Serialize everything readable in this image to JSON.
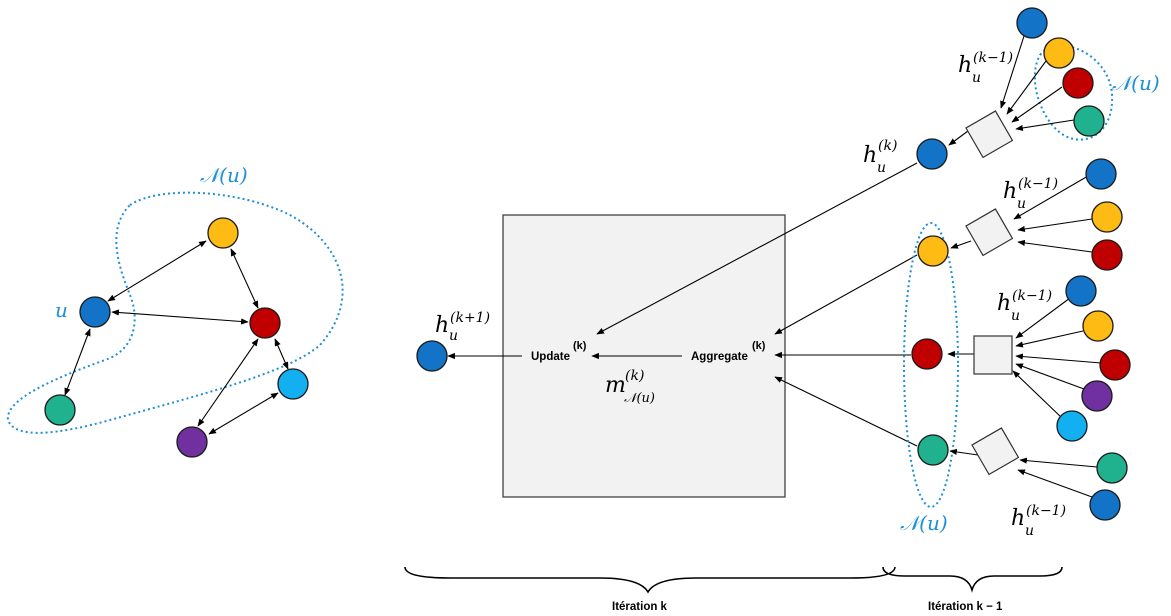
{
  "colors": {
    "blue": "#1273c7",
    "yellow": "#fdbb14",
    "red": "#c00000",
    "teal": "#20b28f",
    "purple": "#7030a0",
    "light_blue": "#12b0f0",
    "neighborhood": "#1f8fd6"
  },
  "left_graph": {
    "node_label": "u",
    "neighborhood_label": "𝒩(u)"
  },
  "center": {
    "update_label": "Update",
    "update_sup": "(k)",
    "aggregate_label": "Aggregate",
    "aggregate_sup": "(k)",
    "message_main": "m",
    "message_sup": "(k)",
    "message_sub": "𝒩(u)",
    "output_main": "h",
    "output_sub": "u",
    "output_sup": "(k+1)"
  },
  "right": {
    "hk_main": "h",
    "hk_sub": "u",
    "hk_sup": "(k)",
    "hprev_sup": "(k−1)",
    "neighborhood_label_top": "𝒩(u)",
    "neighborhood_label_mid": "𝒩(u)"
  },
  "braces": {
    "iteration_k": "Itération k",
    "iteration_k_minus_1": "Itération k − 1"
  }
}
